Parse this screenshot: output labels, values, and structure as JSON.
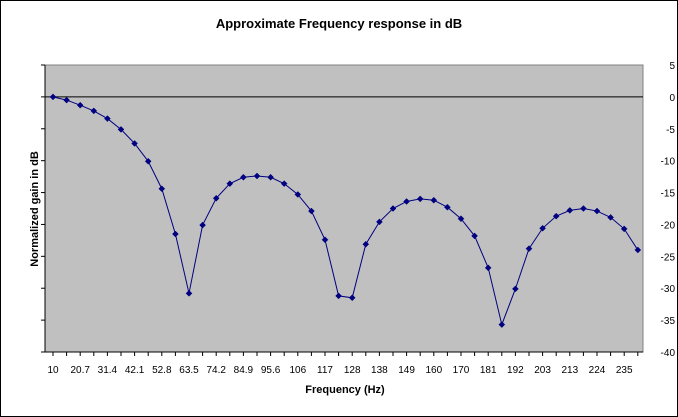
{
  "chart_data": {
    "type": "line",
    "title": "Approximate Frequency response in dB",
    "xlabel": "Frequency (Hz)",
    "ylabel": "Normalized gain in dB",
    "y_ticks_right": [
      "5",
      "0",
      "-5",
      "-10",
      "-15",
      "-20",
      "-25",
      "-30",
      "-35",
      "-40"
    ],
    "x_tick_labels": [
      "10",
      "20.7",
      "31.4",
      "42.1",
      "52.8",
      "63.5",
      "74.2",
      "84.9",
      "95.6",
      "106",
      "117",
      "128",
      "138",
      "149",
      "160",
      "170",
      "181",
      "192",
      "203",
      "213",
      "224",
      "235"
    ],
    "ylim": [
      -40,
      5
    ],
    "grid": false,
    "legend": false,
    "plot_background": "#c0c0c0",
    "series_color": "#000080",
    "x": [
      10,
      15.35,
      20.7,
      26.05,
      31.4,
      36.75,
      42.1,
      47.45,
      52.8,
      58.15,
      63.5,
      68.85,
      74.2,
      79.55,
      84.9,
      90.25,
      95.6,
      100.95,
      106.3,
      111.65,
      117,
      122.35,
      127.7,
      133.05,
      138.4,
      143.75,
      149.1,
      154.45,
      159.8,
      165.15,
      170.5,
      175.85,
      181.2,
      186.55,
      191.9,
      197.25,
      202.6,
      207.95,
      213.3,
      218.65,
      224,
      229.35,
      234.7,
      240.05
    ],
    "series": [
      {
        "values": [
          0,
          -0.5,
          -1.3,
          -2.2,
          -3.4,
          -5.1,
          -7.3,
          -10.1,
          -14.4,
          -21.5,
          -30.8,
          -20.1,
          -15.9,
          -13.6,
          -12.6,
          -12.4,
          -12.6,
          -13.6,
          -15.3,
          -17.9,
          -22.4,
          -31.2,
          -31.5,
          -23.1,
          -19.6,
          -17.5,
          -16.4,
          -16.0,
          -16.2,
          -17.3,
          -19.1,
          -21.8,
          -26.8,
          -35.7,
          -30.1,
          -23.8,
          -20.6,
          -18.7,
          -17.8,
          -17.5,
          -17.9,
          -18.9,
          -20.7,
          -24.0
        ]
      }
    ]
  }
}
